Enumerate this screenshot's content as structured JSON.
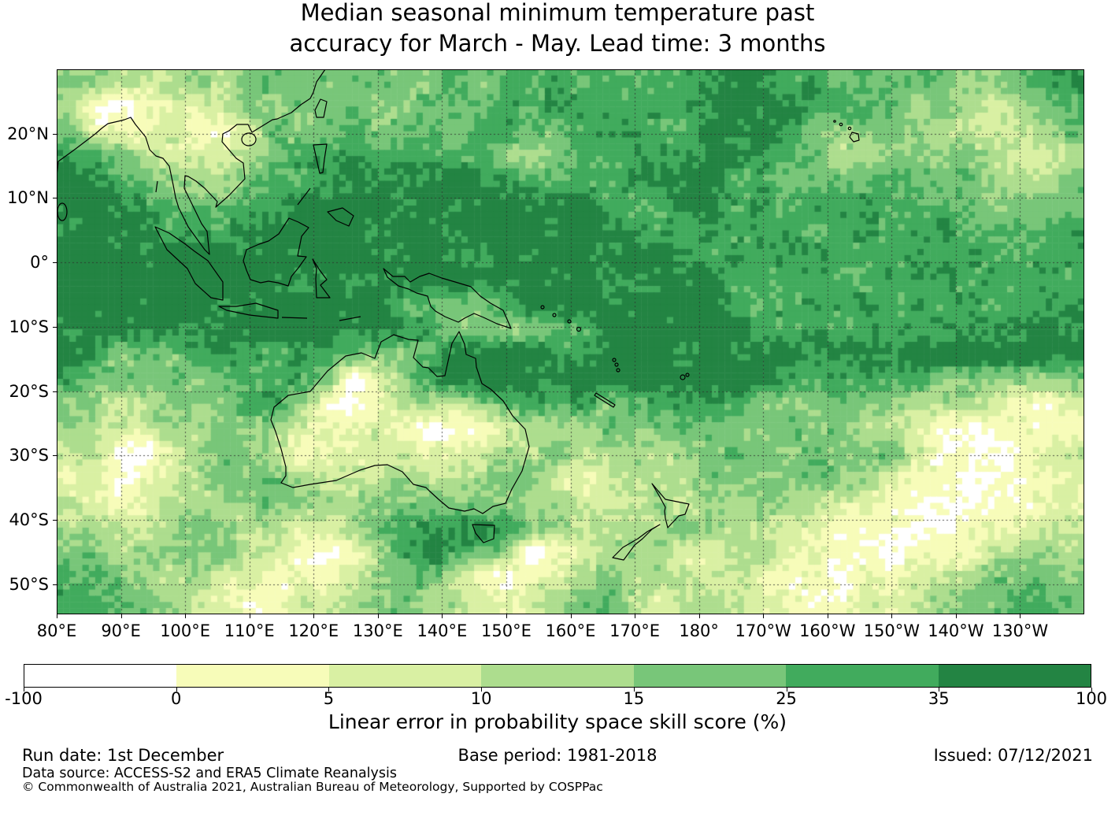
{
  "title": {
    "line1": "Median seasonal minimum temperature past",
    "line2": "accuracy for March - May. Lead time: 3 months"
  },
  "axes": {
    "x_ticks": [
      {
        "deg": 80,
        "label": "80°E"
      },
      {
        "deg": 90,
        "label": "90°E"
      },
      {
        "deg": 100,
        "label": "100°E"
      },
      {
        "deg": 110,
        "label": "110°E"
      },
      {
        "deg": 120,
        "label": "120°E"
      },
      {
        "deg": 130,
        "label": "130°E"
      },
      {
        "deg": 140,
        "label": "140°E"
      },
      {
        "deg": 150,
        "label": "150°E"
      },
      {
        "deg": 160,
        "label": "160°E"
      },
      {
        "deg": 170,
        "label": "170°E"
      },
      {
        "deg": 180,
        "label": "180°"
      },
      {
        "deg": 190,
        "label": "170°W"
      },
      {
        "deg": 200,
        "label": "160°W"
      },
      {
        "deg": 210,
        "label": "150°W"
      },
      {
        "deg": 220,
        "label": "140°W"
      },
      {
        "deg": 230,
        "label": "130°W"
      }
    ],
    "y_ticks": [
      {
        "deg": 20,
        "label": "20°N"
      },
      {
        "deg": 10,
        "label": "10°N"
      },
      {
        "deg": 0,
        "label": "0°"
      },
      {
        "deg": -10,
        "label": "10°S"
      },
      {
        "deg": -20,
        "label": "20°S"
      },
      {
        "deg": -30,
        "label": "30°S"
      },
      {
        "deg": -40,
        "label": "40°S"
      },
      {
        "deg": -50,
        "label": "50°S"
      }
    ]
  },
  "map": {
    "lon_min": 80,
    "lon_max": 240,
    "lat_max": 30,
    "lat_min": -54.7,
    "gridline_lons": [
      90,
      100,
      110,
      120,
      130,
      140,
      150,
      160,
      170,
      180,
      190,
      200,
      210,
      220,
      230
    ],
    "gridline_lats": [
      20,
      10,
      0,
      -10,
      -20,
      -30,
      -40,
      -50
    ],
    "gridline_color": "rgba(45,45,45,0.8)"
  },
  "colorbar": {
    "label": "Linear error in probability space skill score (%)",
    "ticks": [
      "-100",
      "0",
      "5",
      "10",
      "15",
      "25",
      "35",
      "100"
    ],
    "colors": [
      "#ffffff",
      "#f7fcb9",
      "#d9f0a3",
      "#addd8e",
      "#78c679",
      "#41ab5d",
      "#238443"
    ]
  },
  "footer": {
    "run_date": "Run date: 1st December",
    "base_period": "Base period: 1981-2018",
    "issued": "Issued: 07/12/2021",
    "data_source": "Data source: ACCESS-S2 and ERA5 Climate Reanalysis",
    "copyright": "© Commonwealth of Australia 2021, Australian Bureau of Meteorology, Supported by COSPPac"
  },
  "chart_data": {
    "type": "heatmap",
    "title": "Median seasonal minimum temperature past accuracy for March - May. Lead time: 3 months",
    "value_label": "Linear error in probability space skill score (%)",
    "category_bins_pct": [
      "-100–0",
      "0–5",
      "5–10",
      "10–15",
      "15–25",
      "25–35",
      "35–100"
    ],
    "palette": [
      "#ffffff",
      "#f7fcb9",
      "#d9f0a3",
      "#addd8e",
      "#78c679",
      "#41ab5d",
      "#238443"
    ],
    "lon_range_deg_east": [
      80,
      240
    ],
    "lat_range_deg": [
      30,
      -54.7
    ],
    "grid_rows_north_to_south": 22,
    "grid_cols_west_to_east": 40,
    "skill_category_grid": [
      [
        4,
        4,
        3,
        2,
        3,
        3,
        3,
        4,
        4,
        4,
        4,
        4,
        4,
        4,
        4,
        5,
        4,
        5,
        5,
        5,
        5,
        5,
        5,
        5,
        5,
        6,
        6,
        6,
        5,
        5,
        4,
        4,
        4,
        4,
        4,
        3,
        4,
        4,
        5,
        5
      ],
      [
        3,
        0,
        0,
        1,
        2,
        2,
        3,
        4,
        4,
        4,
        4,
        4,
        4,
        4,
        4,
        4,
        4,
        5,
        5,
        5,
        5,
        5,
        5,
        5,
        5,
        6,
        6,
        6,
        6,
        5,
        5,
        5,
        4,
        3,
        4,
        3,
        2,
        3,
        4,
        5
      ],
      [
        4,
        2,
        1,
        1,
        2,
        1,
        1,
        2,
        4,
        4,
        4,
        5,
        4,
        4,
        4,
        4,
        5,
        5,
        4,
        4,
        5,
        5,
        5,
        5,
        5,
        6,
        6,
        6,
        5,
        4,
        3,
        4,
        4,
        3,
        3,
        2,
        2,
        3,
        3,
        4
      ],
      [
        5,
        5,
        4,
        3,
        2,
        2,
        2,
        3,
        4,
        5,
        5,
        5,
        5,
        5,
        5,
        5,
        5,
        4,
        3,
        4,
        5,
        5,
        5,
        5,
        6,
        6,
        6,
        5,
        5,
        4,
        3,
        3,
        4,
        4,
        4,
        4,
        3,
        2,
        2,
        3
      ],
      [
        6,
        6,
        5,
        4,
        3,
        3,
        3,
        4,
        5,
        5,
        5,
        6,
        6,
        6,
        6,
        6,
        6,
        5,
        5,
        5,
        5,
        5,
        5,
        6,
        6,
        6,
        5,
        5,
        4,
        4,
        4,
        5,
        5,
        4,
        4,
        4,
        3,
        3,
        3,
        4
      ],
      [
        6,
        6,
        6,
        5,
        4,
        4,
        4,
        5,
        5,
        6,
        6,
        6,
        6,
        6,
        6,
        6,
        6,
        6,
        6,
        6,
        6,
        5,
        5,
        5,
        6,
        6,
        5,
        5,
        5,
        5,
        5,
        5,
        5,
        5,
        5,
        4,
        4,
        4,
        4,
        4
      ],
      [
        6,
        6,
        6,
        6,
        5,
        5,
        5,
        6,
        6,
        6,
        6,
        6,
        6,
        6,
        6,
        6,
        6,
        6,
        6,
        6,
        6,
        6,
        5,
        5,
        5,
        5,
        5,
        5,
        5,
        5,
        5,
        5,
        5,
        5,
        5,
        5,
        5,
        4,
        4,
        5
      ],
      [
        6,
        6,
        6,
        6,
        6,
        6,
        6,
        6,
        6,
        6,
        6,
        6,
        6,
        6,
        6,
        6,
        6,
        6,
        6,
        6,
        6,
        6,
        6,
        6,
        6,
        5,
        5,
        5,
        5,
        5,
        5,
        5,
        5,
        5,
        5,
        5,
        5,
        5,
        5,
        5
      ],
      [
        6,
        6,
        6,
        6,
        6,
        6,
        6,
        6,
        6,
        6,
        6,
        6,
        6,
        6,
        6,
        6,
        6,
        6,
        6,
        6,
        6,
        6,
        6,
        6,
        6,
        6,
        5,
        5,
        5,
        5,
        5,
        5,
        5,
        5,
        5,
        5,
        5,
        5,
        5,
        5
      ],
      [
        6,
        6,
        6,
        6,
        6,
        6,
        6,
        6,
        6,
        6,
        6,
        6,
        6,
        5,
        4,
        4,
        4,
        5,
        6,
        6,
        6,
        6,
        6,
        6,
        6,
        6,
        5,
        5,
        5,
        5,
        5,
        5,
        5,
        5,
        5,
        5,
        5,
        5,
        5,
        5
      ],
      [
        6,
        6,
        6,
        6,
        6,
        6,
        6,
        6,
        6,
        6,
        6,
        6,
        6,
        6,
        5,
        4,
        4,
        4,
        3,
        4,
        5,
        6,
        6,
        6,
        6,
        6,
        6,
        5,
        5,
        5,
        5,
        5,
        5,
        5,
        5,
        5,
        5,
        6,
        6,
        6
      ],
      [
        6,
        5,
        4,
        4,
        4,
        5,
        5,
        5,
        5,
        5,
        5,
        4,
        4,
        4,
        5,
        6,
        6,
        6,
        6,
        6,
        5,
        6,
        6,
        6,
        6,
        6,
        6,
        6,
        6,
        6,
        6,
        6,
        6,
        6,
        6,
        6,
        6,
        6,
        6,
        6
      ],
      [
        5,
        4,
        4,
        4,
        4,
        4,
        5,
        5,
        5,
        5,
        4,
        0,
        1,
        4,
        5,
        6,
        6,
        6,
        6,
        6,
        6,
        6,
        6,
        6,
        6,
        6,
        6,
        6,
        5,
        5,
        5,
        5,
        5,
        5,
        4,
        4,
        4,
        4,
        3,
        4
      ],
      [
        4,
        3,
        2,
        3,
        4,
        4,
        4,
        5,
        5,
        4,
        1,
        0,
        1,
        3,
        3,
        2,
        4,
        5,
        5,
        5,
        5,
        4,
        5,
        5,
        5,
        5,
        5,
        4,
        4,
        4,
        4,
        4,
        3,
        3,
        3,
        3,
        2,
        1,
        1,
        2
      ],
      [
        3,
        3,
        2,
        2,
        3,
        3,
        4,
        4,
        3,
        2,
        1,
        1,
        2,
        1,
        0,
        0,
        0,
        2,
        3,
        3,
        3,
        4,
        4,
        4,
        4,
        4,
        4,
        4,
        4,
        4,
        4,
        3,
        3,
        2,
        1,
        0,
        0,
        1,
        1,
        1
      ],
      [
        2,
        3,
        0,
        0,
        2,
        3,
        4,
        4,
        2,
        1,
        2,
        2,
        2,
        2,
        1,
        2,
        2,
        3,
        3,
        4,
        3,
        3,
        3,
        3,
        3,
        4,
        4,
        4,
        4,
        4,
        4,
        4,
        4,
        2,
        1,
        1,
        0,
        1,
        2,
        2
      ],
      [
        1,
        2,
        0,
        1,
        2,
        3,
        4,
        4,
        4,
        3,
        2,
        2,
        3,
        3,
        2,
        2,
        3,
        4,
        4,
        2,
        1,
        2,
        3,
        3,
        3,
        4,
        4,
        4,
        4,
        4,
        4,
        3,
        2,
        1,
        1,
        0,
        0,
        1,
        1,
        2
      ],
      [
        2,
        2,
        1,
        2,
        3,
        3,
        3,
        4,
        4,
        4,
        3,
        3,
        4,
        4,
        4,
        4,
        4,
        4,
        3,
        3,
        2,
        2,
        2,
        3,
        3,
        3,
        3,
        4,
        3,
        3,
        2,
        2,
        1,
        1,
        0,
        0,
        1,
        1,
        2,
        2
      ],
      [
        3,
        3,
        2,
        2,
        3,
        4,
        3,
        3,
        3,
        2,
        2,
        3,
        4,
        5,
        5,
        6,
        6,
        5,
        4,
        3,
        3,
        3,
        3,
        3,
        4,
        3,
        3,
        3,
        2,
        2,
        1,
        1,
        1,
        0,
        0,
        1,
        1,
        1,
        2,
        2
      ],
      [
        4,
        4,
        3,
        3,
        3,
        4,
        4,
        3,
        2,
        1,
        0,
        1,
        3,
        5,
        6,
        5,
        5,
        4,
        0,
        1,
        2,
        3,
        3,
        3,
        2,
        2,
        3,
        3,
        2,
        1,
        1,
        1,
        0,
        1,
        1,
        1,
        2,
        3,
        3,
        3
      ],
      [
        5,
        4,
        4,
        3,
        3,
        3,
        2,
        2,
        1,
        1,
        1,
        2,
        3,
        4,
        4,
        3,
        0,
        0,
        1,
        2,
        3,
        4,
        3,
        3,
        2,
        2,
        2,
        2,
        1,
        1,
        0,
        1,
        1,
        2,
        2,
        3,
        4,
        4,
        4,
        4
      ],
      [
        5,
        5,
        4,
        4,
        3,
        2,
        2,
        1,
        1,
        2,
        2,
        3,
        4,
        4,
        3,
        3,
        2,
        1,
        2,
        3,
        4,
        4,
        3,
        2,
        3,
        3,
        2,
        2,
        1,
        1,
        1,
        2,
        2,
        3,
        3,
        4,
        4,
        5,
        5,
        4
      ]
    ]
  }
}
